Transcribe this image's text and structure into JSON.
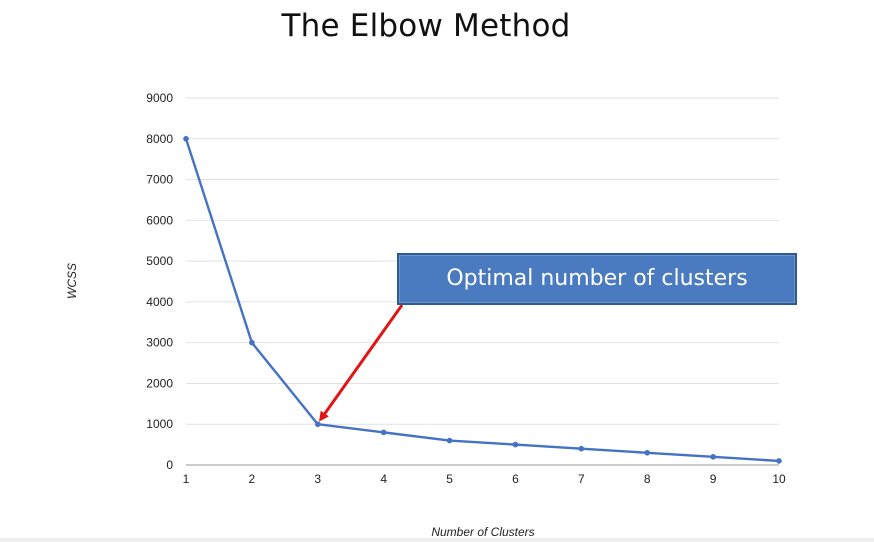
{
  "title": "The Elbow Method",
  "callout": "Optimal number of clusters",
  "colors": {
    "line": "#4472c4",
    "arrow": "#e31414",
    "callout_fill": "#4a7bc0",
    "grid": "#e2e2e2"
  },
  "chart_data": {
    "type": "line",
    "title": "The Elbow Method",
    "xlabel": "Number of Clusters",
    "ylabel": "WCSS",
    "x": [
      1,
      2,
      3,
      4,
      5,
      6,
      7,
      8,
      9,
      10
    ],
    "series": [
      {
        "values": [
          8000,
          3000,
          1000,
          800,
          600,
          500,
          400,
          300,
          200,
          100
        ]
      }
    ],
    "ylim": [
      0,
      9000
    ],
    "yticks": [
      0,
      1000,
      2000,
      3000,
      4000,
      5000,
      6000,
      7000,
      8000,
      9000
    ],
    "xticks": [
      1,
      2,
      3,
      4,
      5,
      6,
      7,
      8,
      9,
      10
    ],
    "grid": "horizontal",
    "legend": "none",
    "annotation": {
      "text": "Optimal number of clusters",
      "points_to": {
        "x": 3,
        "y": 1000
      }
    }
  }
}
